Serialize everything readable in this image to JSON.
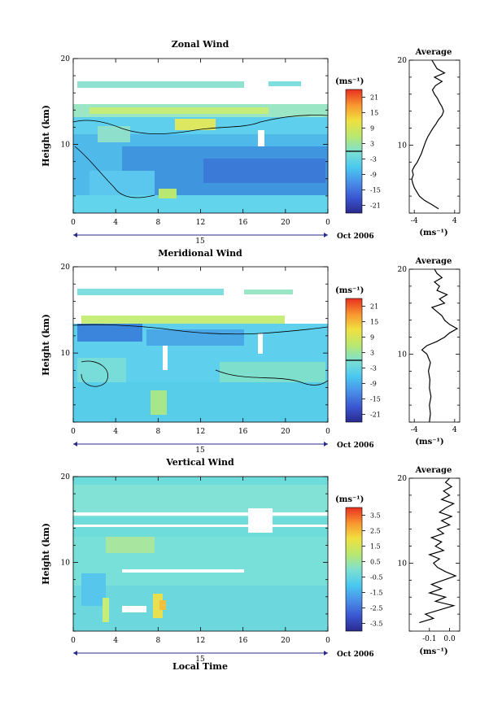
{
  "chart_data": [
    {
      "type": "heatmap",
      "title": "Zonal Wind",
      "ylabel": "Height (km)",
      "x_ticks": [
        "0",
        "4",
        "8",
        "12",
        "16",
        "20",
        "0"
      ],
      "y_ticks": [
        "20",
        "10"
      ],
      "xlim": [
        0,
        24
      ],
      "ylim": [
        2,
        20
      ],
      "date_mark": "15",
      "date_label": "Oct 2006",
      "colorbar": {
        "unit": "(ms⁻¹)",
        "ticks": [
          "21",
          "15",
          "9",
          "3",
          "-3",
          "-9",
          "-15",
          "-21"
        ],
        "range": [
          -24,
          24
        ],
        "contour_at": 0
      },
      "profile": {
        "title": "Average",
        "xlabel": "(ms⁻¹)",
        "x_ticks": [
          "-4",
          "4"
        ],
        "xlim": [
          -5,
          5
        ],
        "y_ticks": [
          "20",
          "10"
        ],
        "points": [
          [
            0.8,
            2.5
          ],
          [
            -0.5,
            3.0
          ],
          [
            -2.0,
            3.5
          ],
          [
            -3.0,
            4.0
          ],
          [
            -3.5,
            4.5
          ],
          [
            -4.0,
            5.0
          ],
          [
            -4.3,
            5.5
          ],
          [
            -4.5,
            6.0
          ],
          [
            -4.2,
            6.5
          ],
          [
            -4.4,
            7.0
          ],
          [
            -4.0,
            7.5
          ],
          [
            -3.4,
            8.0
          ],
          [
            -3.0,
            8.5
          ],
          [
            -2.6,
            9.0
          ],
          [
            -2.3,
            9.5
          ],
          [
            -2.0,
            10.0
          ],
          [
            -1.7,
            10.5
          ],
          [
            -1.3,
            11.0
          ],
          [
            -0.8,
            11.5
          ],
          [
            -0.3,
            12.0
          ],
          [
            0.3,
            12.5
          ],
          [
            0.8,
            13.0
          ],
          [
            1.5,
            13.5
          ],
          [
            1.8,
            14.0
          ],
          [
            1.5,
            14.5
          ],
          [
            1.0,
            15.0
          ],
          [
            0.6,
            15.5
          ],
          [
            0.0,
            16.0
          ],
          [
            -0.4,
            16.5
          ],
          [
            0.2,
            17.0
          ],
          [
            1.5,
            17.5
          ],
          [
            0.0,
            18.0
          ],
          [
            2.0,
            18.5
          ],
          [
            0.5,
            19.0
          ],
          [
            0.0,
            19.5
          ],
          [
            -0.5,
            20.0
          ]
        ]
      }
    },
    {
      "type": "heatmap",
      "title": "Meridional Wind",
      "ylabel": "Height (km)",
      "x_ticks": [
        "0",
        "4",
        "8",
        "12",
        "16",
        "20",
        "0"
      ],
      "y_ticks": [
        "20",
        "10"
      ],
      "xlim": [
        0,
        24
      ],
      "ylim": [
        2,
        20
      ],
      "date_mark": "15",
      "date_label": "Oct 2006",
      "colorbar": {
        "unit": "(ms⁻¹)",
        "ticks": [
          "21",
          "15",
          "9",
          "3",
          "-3",
          "-9",
          "-15",
          "-21"
        ],
        "range": [
          -24,
          24
        ],
        "contour_at": 0
      },
      "profile": {
        "title": "Average",
        "xlabel": "(ms⁻¹)",
        "x_ticks": [
          "-4",
          "4"
        ],
        "xlim": [
          -5,
          5
        ],
        "y_ticks": [
          "20",
          "10"
        ],
        "points": [
          [
            -1.0,
            2.0
          ],
          [
            -0.8,
            3.0
          ],
          [
            -1.0,
            4.0
          ],
          [
            -0.7,
            5.0
          ],
          [
            -1.0,
            6.0
          ],
          [
            -0.9,
            7.0
          ],
          [
            -1.2,
            8.0
          ],
          [
            -0.8,
            9.0
          ],
          [
            -1.5,
            10.0
          ],
          [
            -2.5,
            10.5
          ],
          [
            -1.5,
            11.0
          ],
          [
            0.5,
            11.5
          ],
          [
            2.0,
            12.0
          ],
          [
            3.0,
            12.5
          ],
          [
            4.5,
            13.0
          ],
          [
            3.0,
            13.5
          ],
          [
            2.0,
            14.0
          ],
          [
            1.5,
            14.5
          ],
          [
            0.5,
            15.0
          ],
          [
            -0.5,
            15.5
          ],
          [
            2.0,
            16.0
          ],
          [
            1.0,
            16.5
          ],
          [
            2.5,
            17.0
          ],
          [
            0.5,
            17.5
          ],
          [
            1.0,
            18.0
          ],
          [
            0.0,
            18.5
          ],
          [
            1.5,
            19.0
          ],
          [
            0.5,
            19.5
          ],
          [
            0.0,
            20.0
          ]
        ]
      }
    },
    {
      "type": "heatmap",
      "title": "Vertical Wind",
      "ylabel": "Height (km)",
      "xlabel": "Local Time",
      "x_ticks": [
        "0",
        "4",
        "8",
        "12",
        "16",
        "20",
        "0"
      ],
      "y_ticks": [
        "20",
        "10"
      ],
      "xlim": [
        0,
        24
      ],
      "ylim": [
        2,
        20
      ],
      "date_mark": "15",
      "date_label": "Oct 2006",
      "colorbar": {
        "unit": "(ms⁻¹)",
        "ticks": [
          "3.5",
          "2.5",
          "1.5",
          "0.5",
          "-0.5",
          "-1.5",
          "-2.5",
          "-3.5"
        ],
        "range": [
          -4,
          4
        ]
      },
      "profile": {
        "title": "Average",
        "xlabel": "(ms⁻¹)",
        "x_ticks": [
          "-0.1",
          "0.0"
        ],
        "xlim": [
          -0.2,
          0.05
        ],
        "y_ticks": [
          "20",
          "10"
        ],
        "points": [
          [
            -0.15,
            3.0
          ],
          [
            -0.08,
            3.5
          ],
          [
            -0.12,
            4.0
          ],
          [
            -0.05,
            4.5
          ],
          [
            0.02,
            5.0
          ],
          [
            -0.07,
            5.5
          ],
          [
            -0.02,
            6.0
          ],
          [
            -0.1,
            6.5
          ],
          [
            -0.04,
            7.0
          ],
          [
            -0.09,
            7.5
          ],
          [
            -0.03,
            8.0
          ],
          [
            0.03,
            8.5
          ],
          [
            -0.02,
            9.0
          ],
          [
            -0.06,
            9.5
          ],
          [
            -0.08,
            10.0
          ],
          [
            -0.05,
            10.5
          ],
          [
            -0.1,
            11.0
          ],
          [
            -0.03,
            11.5
          ],
          [
            -0.07,
            12.0
          ],
          [
            -0.04,
            12.5
          ],
          [
            -0.09,
            13.0
          ],
          [
            -0.03,
            13.5
          ],
          [
            -0.06,
            14.0
          ],
          [
            0.0,
            14.5
          ],
          [
            -0.04,
            15.0
          ],
          [
            0.01,
            15.5
          ],
          [
            -0.05,
            16.0
          ],
          [
            -0.02,
            16.5
          ],
          [
            0.02,
            17.0
          ],
          [
            -0.04,
            17.5
          ],
          [
            0.0,
            18.0
          ],
          [
            -0.03,
            18.5
          ],
          [
            0.01,
            19.0
          ],
          [
            -0.02,
            19.5
          ],
          [
            0.0,
            20.0
          ]
        ]
      }
    }
  ]
}
